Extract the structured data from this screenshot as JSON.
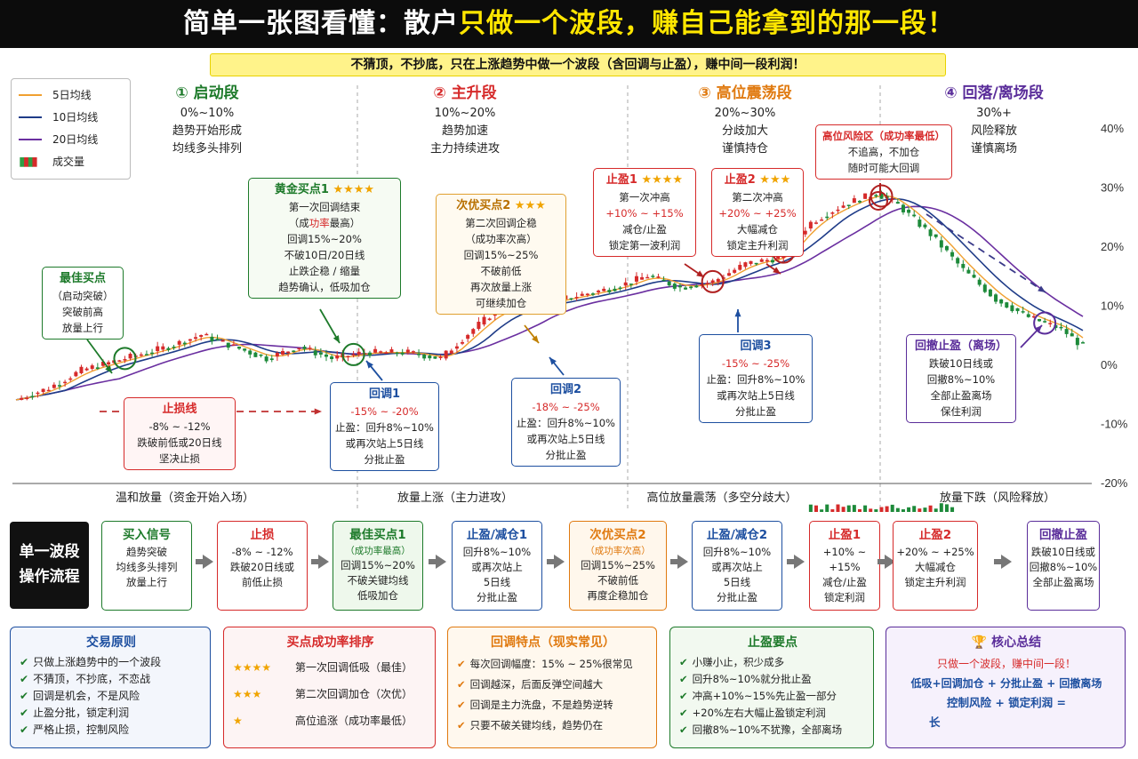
{
  "title": {
    "part1": "简单一张图看懂：散户",
    "part2": "只做一个波段，赚自己能拿到的那一段！"
  },
  "subtitle": "不猜顶，不抄底，只在上涨趋势中做一个波段（含回调与止盈），赚中间一段利润！",
  "legend": [
    {
      "label": "5日均线",
      "color": "#f0a030"
    },
    {
      "label": "10日均线",
      "color": "#1f3c88"
    },
    {
      "label": "20日均线",
      "color": "#6a2fa0"
    },
    {
      "label": "成交量",
      "color": "#2e9e44"
    }
  ],
  "phases": [
    {
      "title": "① 启动段",
      "range": "0%~10%",
      "d1": "趋势开始形成",
      "d2": "均线多头排列",
      "color": "#1d7a2a"
    },
    {
      "title": "② 主升段",
      "range": "10%~20%",
      "d1": "趋势加速",
      "d2": "主力持续进攻",
      "color": "#d62a2a"
    },
    {
      "title": "③ 高位震荡段",
      "range": "20%~30%",
      "d1": "分歧加大",
      "d2": "谨慎持仓",
      "color": "#e07a10"
    },
    {
      "title": "④ 回落/离场段",
      "range": "30%+",
      "d1": "风险释放",
      "d2": "谨慎离场",
      "color": "#5a2d9a"
    }
  ],
  "volume_labels": [
    "温和放量（资金开始入场）",
    "放量上涨（主力进攻）",
    "高位放量震荡（多空分歧大）",
    "放量下跌（风险释放）"
  ],
  "annotations": {
    "best_buy": {
      "h": "最佳买点",
      "l1": "（启动突破）",
      "l2": "突破前高",
      "l3": "放量上行"
    },
    "gold_buy": {
      "h": "黄金买点1",
      "stars": "★★★★",
      "l1": "第一次回调结束",
      "l2a": "（成",
      "l2b": "功率",
      "l2c": "最高）",
      "l3": "回调15%~20%",
      "l4": "不破10日/20日线",
      "l5": "止跌企稳 / 缩量",
      "l6": "趋势确认，低吸加仓"
    },
    "second_buy": {
      "h": "次优买点2",
      "stars": "★★★",
      "l1": "第二次回调企稳",
      "l2": "（成功率次高）",
      "l3": "回调15%~25%",
      "l4": "不破前低",
      "l5": "再次放量上涨",
      "l6": "可继续加仓"
    },
    "tp1": {
      "h": "止盈1",
      "stars": "★★★★",
      "l1": "第一次冲高",
      "l2": "+10% ~ +15%",
      "l3": "减仓/止盈",
      "l4": "锁定第一波利润"
    },
    "tp2": {
      "h": "止盈2",
      "stars": "★★★",
      "l1": "第二次冲高",
      "l2": "+20% ~ +25%",
      "l3": "大幅减仓",
      "l4": "锁定主升利润"
    },
    "risk": {
      "h": "高位风险区（成功率最低）",
      "l1": "不追高，不加仓",
      "l2": "随时可能大回调"
    },
    "stop": {
      "h": "止损线",
      "l1": "-8% ~ -12%",
      "l2": "跌破前低或20日线",
      "l3": "坚决止损"
    },
    "pb1": {
      "h": "回调1",
      "l1": "-15% ~ -20%",
      "l2": "止盈：回升8%~10%",
      "l3": "或再次站上5日线",
      "l4": "分批止盈"
    },
    "pb2": {
      "h": "回调2",
      "l1": "-18% ~ -25%",
      "l2": "止盈：回升8%~10%",
      "l3": "或再次站上5日线",
      "l4": "分批止盈"
    },
    "pb3": {
      "h": "回调3",
      "l1": "-15% ~ -25%",
      "l2": "止盈：回升8%~10%",
      "l3": "或再次站上5日线",
      "l4": "分批止盈"
    },
    "exit": {
      "h": "回撤止盈（离场）",
      "l1": "跌破10日线或",
      "l2": "回撤8%~10%",
      "l3": "全部止盈离场",
      "l4": "保住利润"
    }
  },
  "chart_data": {
    "type": "line",
    "y_ticks": [
      "40%",
      "30%",
      "20%",
      "10%",
      "0%",
      "-10%",
      "-20%"
    ],
    "ylim": [
      -20,
      40
    ],
    "price_path": [
      {
        "x": 0,
        "y": -6
      },
      {
        "x": 6,
        "y": -4
      },
      {
        "x": 12,
        "y": -1
      },
      {
        "x": 20,
        "y": 1
      },
      {
        "x": 28,
        "y": 3
      },
      {
        "x": 34,
        "y": 5
      },
      {
        "x": 40,
        "y": 3
      },
      {
        "x": 46,
        "y": 1
      },
      {
        "x": 52,
        "y": 3
      },
      {
        "x": 58,
        "y": 1
      },
      {
        "x": 64,
        "y": 2
      },
      {
        "x": 72,
        "y": 2
      },
      {
        "x": 78,
        "y": 1
      },
      {
        "x": 84,
        "y": 6
      },
      {
        "x": 88,
        "y": 9
      },
      {
        "x": 94,
        "y": 10
      },
      {
        "x": 100,
        "y": 11
      },
      {
        "x": 110,
        "y": 13
      },
      {
        "x": 116,
        "y": 15
      },
      {
        "x": 122,
        "y": 13
      },
      {
        "x": 128,
        "y": 14
      },
      {
        "x": 134,
        "y": 17
      },
      {
        "x": 140,
        "y": 18
      },
      {
        "x": 146,
        "y": 24
      },
      {
        "x": 152,
        "y": 27
      },
      {
        "x": 158,
        "y": 29
      },
      {
        "x": 162,
        "y": 27
      },
      {
        "x": 168,
        "y": 22
      },
      {
        "x": 174,
        "y": 16
      },
      {
        "x": 180,
        "y": 11
      },
      {
        "x": 186,
        "y": 8
      },
      {
        "x": 192,
        "y": 6
      },
      {
        "x": 196,
        "y": 3
      }
    ],
    "series": [
      {
        "name": "5日均线"
      },
      {
        "name": "10日均线"
      },
      {
        "name": "20日均线"
      }
    ]
  },
  "flow": {
    "label_l1": "单一波段",
    "label_l2": "操作流程",
    "steps": [
      {
        "h": "买入信号",
        "l1": "趋势突破",
        "l2": "均线多头排列",
        "l3": "放量上行",
        "c": "#1d7a2a",
        "bg": "#fff"
      },
      {
        "h": "止损",
        "l1": "-8% ~ -12%",
        "l2": "跌破20日线或",
        "l3": "前低止损",
        "c": "#d62a2a",
        "bg": "#fff"
      },
      {
        "h": "最佳买点1",
        "s": "（成功率最高）",
        "l1": "回调15%~20%",
        "l2": "不破关键均线",
        "l3": "低吸加仓",
        "c": "#1d7a2a",
        "bg": "#eef8ec"
      },
      {
        "h": "止盈/减仓1",
        "l1": "回升8%~10%",
        "l2": "或再次站上",
        "l3": "5日线",
        "l4": "分批止盈",
        "c": "#1d4fa0",
        "bg": "#fff"
      },
      {
        "h": "次优买点2",
        "s": "（成功率次高）",
        "l1": "回调15%~25%",
        "l2": "不破前低",
        "l3": "再度企稳加仓",
        "c": "#e07a10",
        "bg": "#fff7ec"
      },
      {
        "h": "止盈/减仓2",
        "l1": "回升8%~10%",
        "l2": "或再次站上",
        "l3": "5日线",
        "l4": "分批止盈",
        "c": "#1d4fa0",
        "bg": "#fff"
      },
      {
        "h": "止盈1",
        "l1": "+10% ~ +15%",
        "l2": "减仓/止盈",
        "l3": "锁定利润",
        "c": "#d62a2a",
        "bg": "#fff"
      },
      {
        "h": "止盈2",
        "l1": "+20% ~ +25%",
        "l2": "大幅减仓",
        "l3": "锁定主升利润",
        "c": "#d62a2a",
        "bg": "#fff"
      },
      {
        "h": "回撤止盈",
        "l1": "跌破10日线或",
        "l2": "回撤8%~10%",
        "l3": "全部止盈离场",
        "c": "#5a2d9a",
        "bg": "#fff"
      }
    ]
  },
  "panels": {
    "principles": {
      "h": "交易原则",
      "items": [
        "只做上涨趋势中的一个波段",
        "不猜顶，不抄底，不恋战",
        "回调是机会，不是风险",
        "止盈分批，锁定利润",
        "严格止损，控制风险"
      ]
    },
    "ranking": {
      "h": "买点成功率排序",
      "items": [
        {
          "s": "★★★★",
          "t": "第一次回调低吸（最佳）"
        },
        {
          "s": "★★★",
          "t": "第二次回调加仓（次优）"
        },
        {
          "s": "★",
          "t": "高位追涨（成功率最低）"
        }
      ]
    },
    "pullback": {
      "h": "回调特点（现实常见）",
      "items": [
        "每次回调幅度：15% ~ 25%很常见",
        "回调越深，后面反弹空间越大",
        "回调是主力洗盘，不是趋势逆转",
        "只要不破关键均线，趋势仍在"
      ]
    },
    "tp": {
      "h": "止盈要点",
      "items": [
        "小赚小止，积少成多",
        "回升8%~10%就分批止盈",
        "冲高+10%~15%先止盈一部分",
        "+20%左右大幅止盈锁定利润",
        "回撤8%~10%不犹豫，全部离场"
      ]
    },
    "summary": {
      "h": "核心总结",
      "l1": "只做一个波段，赚中间一段！",
      "l2": "低吸+回调加仓 + 分批止盈 + 回撤离场",
      "l3": "控制风险 + 锁定利润 =",
      "l4": "长"
    }
  }
}
